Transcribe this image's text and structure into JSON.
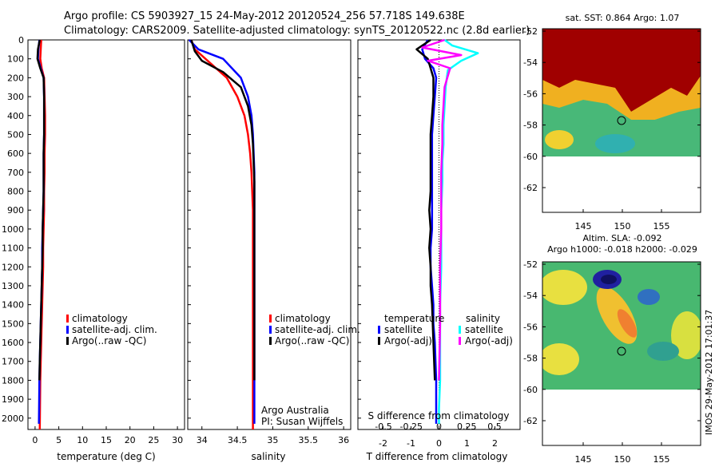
{
  "header": {
    "line1": "Argo profile: CS 5903927_15 24-May-2012 20120524_256 57.718S 149.638E",
    "line2": "Climatology: CARS2009. Satellite-adjusted climatology: synTS_20120522.nc (2.8d earlier)"
  },
  "colors": {
    "climatology": "#ff0000",
    "satellite": "#0000ff",
    "argo": "#000000",
    "satellite_s": "#00ffff",
    "argo_s": "#ff00ff"
  },
  "depth_axis": {
    "ticks": [
      0,
      100,
      200,
      300,
      400,
      500,
      600,
      700,
      800,
      900,
      1000,
      1100,
      1200,
      1300,
      1400,
      1500,
      1600,
      1700,
      1800,
      1900,
      2000
    ],
    "range": [
      0,
      2060
    ]
  },
  "panels": {
    "temperature": {
      "xlabel": "temperature (deg C)",
      "xticks": [
        "0",
        "5",
        "10",
        "15",
        "20",
        "25",
        "30"
      ],
      "legend": [
        "climatology",
        "satellite-adj. clim.",
        "Argo(..raw -QC)"
      ]
    },
    "salinity": {
      "xlabel": "salinity",
      "xticks": [
        "34",
        "34.5",
        "35",
        "35.5",
        "36"
      ],
      "legend": [
        "climatology",
        "satellite-adj. clim.",
        "Argo(..raw -QC)"
      ],
      "credit1": "Argo Australia",
      "credit2": "PI: Susan Wijffels"
    },
    "difference": {
      "xlabel": "T difference from climatology",
      "top_label": "S difference from climatology",
      "xticks_t": [
        "-2",
        "-1",
        "0",
        "1",
        "2"
      ],
      "xticks_s": [
        "-0.5",
        "-0.25",
        "0",
        "0.25",
        "0.5"
      ],
      "legend_t_title": "temperature",
      "legend_t": [
        "satellite",
        "Argo(-adj)"
      ],
      "legend_s_title": "salinity",
      "legend_s": [
        "satellite",
        "Argo(-adj)"
      ]
    }
  },
  "maps": {
    "sst": {
      "title": "sat. SST: 0.864  Argo: 1.07",
      "yticks": [
        "-52",
        "-54",
        "-56",
        "-58",
        "-60",
        "-62"
      ],
      "xticks": [
        "145",
        "150",
        "155"
      ]
    },
    "sla": {
      "title1": "Altim. SLA: -0.092",
      "title2": "Argo h1000: -0.018 h2000: -0.029",
      "yticks": [
        "-52",
        "-54",
        "-56",
        "-58",
        "-60",
        "-62"
      ],
      "xticks": [
        "145",
        "150",
        "155"
      ]
    },
    "float_position": {
      "lon": 149.638,
      "lat": -57.718
    }
  },
  "side_stamp": "IMOS 29-May-2012 17:01:37",
  "chart_data": [
    {
      "type": "line",
      "title": "temperature",
      "xlabel": "temperature (deg C)",
      "ylabel": "",
      "xlim": [
        -1.5,
        31.5
      ],
      "ylim": [
        2060,
        0
      ],
      "series": [
        {
          "name": "climatology",
          "color": "#ff0000",
          "x": [
            1.3,
            1.2,
            1.1,
            1.4,
            1.9,
            2.0,
            2.1,
            2.1,
            2.0,
            2.0,
            1.9,
            1.9,
            1.8,
            1.7,
            1.7,
            1.6,
            1.5,
            1.4,
            1.3,
            1.2,
            1.1,
            1.0
          ],
          "y": [
            0,
            50,
            100,
            150,
            200,
            300,
            400,
            500,
            600,
            700,
            800,
            900,
            1000,
            1100,
            1200,
            1300,
            1400,
            1500,
            1600,
            1700,
            1800,
            2060
          ]
        },
        {
          "name": "satellite-adj. clim.",
          "color": "#0000ff",
          "x": [
            0.9,
            0.7,
            0.6,
            1.2,
            1.8,
            1.9,
            1.9,
            1.9,
            1.8,
            1.8,
            1.8,
            1.7,
            1.6,
            1.5,
            1.5,
            1.4,
            1.3,
            1.2,
            1.1,
            1.0,
            0.9,
            0.8
          ],
          "y": [
            0,
            50,
            100,
            150,
            200,
            300,
            400,
            500,
            600,
            700,
            800,
            900,
            1000,
            1100,
            1200,
            1300,
            1400,
            1500,
            1600,
            1700,
            1800,
            2030
          ]
        },
        {
          "name": "Argo(..raw -QC)",
          "color": "#000000",
          "x": [
            1.0,
            0.6,
            0.5,
            1.1,
            1.8,
            1.9,
            1.9,
            1.9,
            1.8,
            1.8,
            1.8,
            1.7,
            1.6,
            1.6,
            1.5,
            1.4,
            1.3,
            1.2,
            1.1,
            1.0,
            0.9
          ],
          "y": [
            0,
            50,
            100,
            150,
            200,
            300,
            400,
            500,
            600,
            700,
            800,
            900,
            1000,
            1100,
            1200,
            1300,
            1400,
            1500,
            1600,
            1700,
            1800
          ]
        }
      ]
    },
    {
      "type": "line",
      "title": "salinity",
      "xlabel": "salinity",
      "ylabel": "",
      "xlim": [
        33.8,
        36.1
      ],
      "ylim": [
        2060,
        0
      ],
      "series": [
        {
          "name": "climatology",
          "color": "#ff0000",
          "x": [
            33.85,
            33.9,
            34.05,
            34.35,
            34.5,
            34.6,
            34.65,
            34.68,
            34.7,
            34.71,
            34.72,
            34.72,
            34.72,
            34.72,
            34.72,
            34.72,
            34.72,
            34.72,
            34.72,
            34.72,
            34.72
          ],
          "y": [
            0,
            50,
            100,
            200,
            300,
            400,
            500,
            600,
            700,
            800,
            900,
            1000,
            1100,
            1200,
            1300,
            1400,
            1500,
            1600,
            1700,
            1800,
            2060
          ]
        },
        {
          "name": "satellite-adj. clim.",
          "color": "#0000ff",
          "x": [
            33.82,
            33.95,
            34.3,
            34.55,
            34.65,
            34.7,
            34.72,
            34.73,
            34.74,
            34.74,
            34.74,
            34.74,
            34.74,
            34.74,
            34.74,
            34.74,
            34.74,
            34.74,
            34.74,
            34.74,
            34.74
          ],
          "y": [
            0,
            50,
            100,
            200,
            300,
            400,
            500,
            600,
            700,
            800,
            900,
            1000,
            1100,
            1200,
            1300,
            1400,
            1500,
            1600,
            1700,
            1800,
            2030
          ]
        },
        {
          "name": "Argo(..raw -QC)",
          "color": "#000000",
          "x": [
            33.85,
            33.9,
            34.0,
            34.3,
            34.55,
            34.65,
            34.7,
            34.72,
            34.73,
            34.74,
            34.74,
            34.74,
            34.74,
            34.74,
            34.74,
            34.74,
            34.74,
            34.74,
            34.74
          ],
          "y": [
            0,
            60,
            110,
            170,
            250,
            350,
            450,
            550,
            650,
            750,
            850,
            1000,
            1100,
            1200,
            1300,
            1400,
            1500,
            1600,
            1800
          ]
        }
      ]
    },
    {
      "type": "line",
      "title": "",
      "xlabel": "T difference from climatology",
      "x2label": "S difference from climatology",
      "ylabel": "",
      "xlim": [
        -2.9,
        2.9
      ],
      "x2lim": [
        -0.73,
        0.73
      ],
      "ylim": [
        2060,
        0
      ],
      "series": [
        {
          "name": "temperature satellite",
          "axis": "T",
          "color": "#0000ff",
          "x": [
            -0.4,
            -0.6,
            -0.5,
            -0.2,
            -0.1,
            -0.15,
            -0.2,
            -0.25,
            -0.25,
            -0.25,
            -0.25,
            -0.25,
            -0.25,
            -0.3,
            -0.3,
            -0.25,
            -0.2,
            -0.2,
            -0.15,
            -0.1,
            -0.1
          ],
          "y": [
            0,
            50,
            100,
            150,
            200,
            300,
            400,
            500,
            600,
            700,
            800,
            900,
            1000,
            1100,
            1200,
            1300,
            1400,
            1500,
            1600,
            1800,
            2030
          ]
        },
        {
          "name": "temperature Argo(-adj)",
          "axis": "T",
          "color": "#000000",
          "x": [
            -0.3,
            -0.8,
            -0.4,
            -0.3,
            -0.2,
            -0.2,
            -0.25,
            -0.3,
            -0.3,
            -0.3,
            -0.3,
            -0.35,
            -0.3,
            -0.35,
            -0.3,
            -0.3,
            -0.25,
            -0.2,
            -0.15
          ],
          "y": [
            0,
            50,
            100,
            150,
            200,
            300,
            400,
            500,
            600,
            700,
            800,
            900,
            1000,
            1100,
            1200,
            1300,
            1400,
            1600,
            1800
          ]
        },
        {
          "name": "salinity satellite",
          "axis": "S",
          "color": "#00ffff",
          "x": [
            0.05,
            0.12,
            0.35,
            0.2,
            0.08,
            0.06,
            0.05,
            0.04,
            0.04,
            0.03,
            0.03,
            0.02,
            0.02,
            0.02,
            0.01,
            0.01,
            0.01,
            0.0,
            0.0
          ],
          "y": [
            0,
            30,
            70,
            110,
            160,
            250,
            350,
            450,
            550,
            650,
            750,
            900,
            1000,
            1200,
            1400,
            1600,
            1800,
            1950,
            2030
          ]
        },
        {
          "name": "salinity Argo(-adj)",
          "axis": "S",
          "color": "#ff00ff",
          "x": [
            0.05,
            -0.15,
            0.2,
            -0.1,
            0.1,
            0.05,
            0.04,
            0.03,
            0.03,
            0.02,
            0.02,
            0.02,
            0.01,
            0.01,
            0.0
          ],
          "y": [
            0,
            40,
            80,
            110,
            150,
            250,
            350,
            450,
            550,
            700,
            850,
            1000,
            1200,
            1500,
            1800
          ]
        }
      ]
    }
  ]
}
